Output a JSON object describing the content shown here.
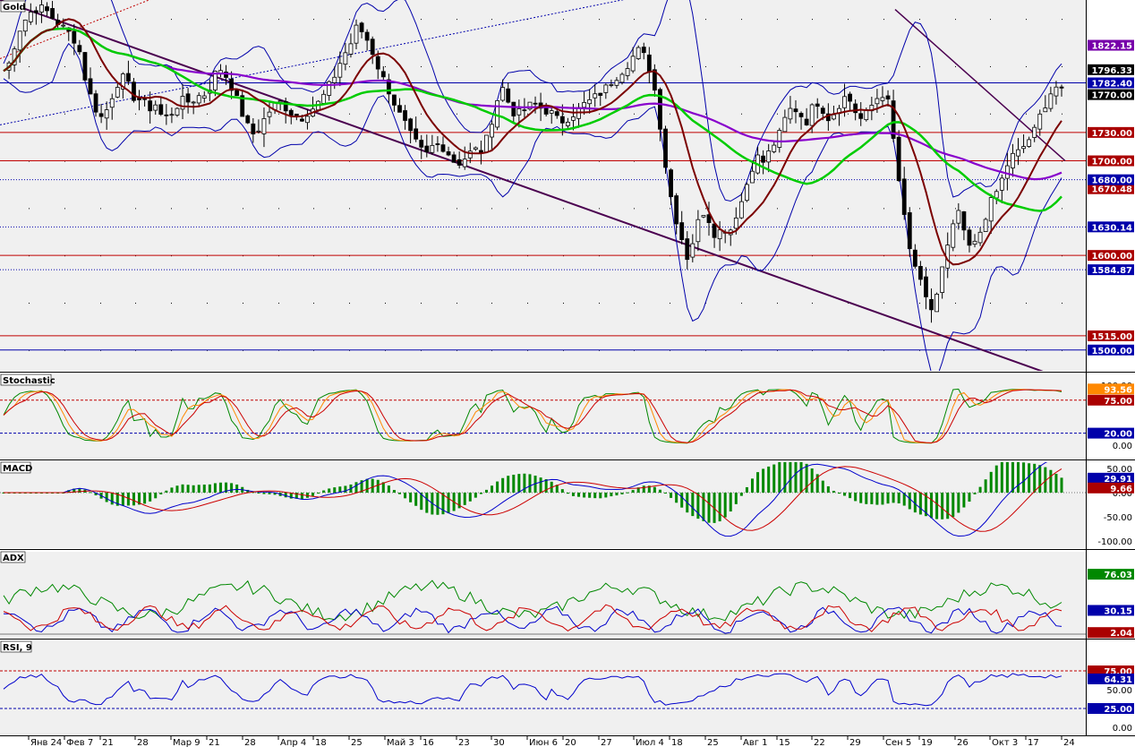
{
  "chart_data": {
    "type": "candlestick",
    "title": "Gold",
    "x_labels": [
      "Янв 24",
      "Фев 7",
      "21",
      "28",
      "Мар 9",
      "21",
      "28",
      "Апр 4",
      "18",
      "25",
      "Май 3",
      "16",
      "23",
      "30",
      "Июн 6",
      "20",
      "27",
      "Июл 4",
      "18",
      "25",
      "Авг 1",
      "15",
      "22",
      "29",
      "Сен 5",
      "19",
      "26",
      "Окт 3",
      "17",
      "24"
    ],
    "price_axis": {
      "range": [
        1478,
        1870
      ],
      "ticks": [
        1500,
        1515,
        1584.87,
        1600,
        1630.14,
        1670.48,
        1680,
        1700,
        1730,
        1770,
        1782.4,
        1796.33,
        1822.15
      ],
      "tick_labels": [
        "1500.00",
        "1515.00",
        "1584.87",
        "1600.00",
        "1630.14",
        "1670.48",
        "1680.00",
        "1700.00",
        "1730.00",
        "1770.00",
        "1782.40",
        "1796.33",
        "1822.15"
      ]
    },
    "levels_red": [
      1515,
      1600,
      1700,
      1730
    ],
    "levels_blue": [
      1500,
      1584.87,
      1630.14,
      1680,
      1782.4
    ],
    "close_series": [
      1795,
      1805,
      1835,
      1848,
      1858,
      1862,
      1860,
      1852,
      1845,
      1838,
      1832,
      1815,
      1780,
      1760,
      1745,
      1755,
      1775,
      1790,
      1780,
      1765,
      1765,
      1755,
      1760,
      1745,
      1748,
      1758,
      1764,
      1762,
      1768,
      1770,
      1780,
      1800,
      1792,
      1778,
      1760,
      1740,
      1728,
      1735,
      1748,
      1758,
      1762,
      1755,
      1748,
      1745,
      1752,
      1757,
      1765,
      1778,
      1792,
      1810,
      1820,
      1840,
      1836,
      1822,
      1802,
      1785,
      1770,
      1752,
      1740,
      1725,
      1715,
      1705,
      1715,
      1718,
      1712,
      1700,
      1698,
      1705,
      1712,
      1710,
      1725,
      1755,
      1780,
      1762,
      1748,
      1752,
      1758,
      1760,
      1754,
      1752,
      1744,
      1742,
      1748,
      1753,
      1760,
      1764,
      1770,
      1776,
      1785,
      1792,
      1800,
      1810,
      1818,
      1806,
      1782,
      1735,
      1680,
      1645,
      1620,
      1595,
      1625,
      1648,
      1638,
      1620,
      1630,
      1625,
      1645,
      1662,
      1690,
      1704,
      1698,
      1714,
      1724,
      1744,
      1757,
      1752,
      1740,
      1757,
      1764,
      1744,
      1750,
      1762,
      1770,
      1754,
      1744,
      1752,
      1764,
      1772,
      1760,
      1704,
      1650,
      1606,
      1585,
      1560,
      1540,
      1560,
      1595,
      1620,
      1650,
      1618,
      1605,
      1620,
      1642,
      1660,
      1672,
      1694,
      1706,
      1710,
      1720,
      1730,
      1750,
      1766,
      1780,
      1772
    ],
    "moving_averages": [
      {
        "color": "#7b0000",
        "period": 20
      },
      {
        "color": "#00cc00",
        "period": 50
      },
      {
        "color": "#8800cc",
        "period": 120
      }
    ],
    "trendlines": [
      {
        "color": "#4b0050",
        "style": "solid"
      },
      {
        "color": "#0000aa",
        "style": "dotted"
      },
      {
        "color": "#cc0000",
        "style": "dotted"
      }
    ],
    "indicators": [
      {
        "name": "Stochastic",
        "ticks": [
          "100.00",
          "75.00",
          "20.00",
          "0.00"
        ],
        "tags": [
          "93.56",
          "75.00",
          "20.00"
        ]
      },
      {
        "name": "MACD",
        "ticks": [
          "50.00",
          "0.00",
          "-50.00",
          "-100.00"
        ],
        "tags": [
          "29.91",
          "9.66"
        ]
      },
      {
        "name": "ADX",
        "tags": [
          "76.03",
          "30.15",
          "2.04"
        ]
      },
      {
        "name": "RSI, 9",
        "ticks": [
          "75.00",
          "50.00",
          "25.00",
          "0.00"
        ],
        "tags": [
          "75.00",
          "64.31",
          "25.00"
        ]
      }
    ],
    "colors": {
      "bg": "#f0f0f0",
      "price_tag_blue": "#0000aa",
      "price_tag_red": "#aa0000",
      "last_price_tag": "#000000",
      "ma120_tag": "#7700aa"
    }
  }
}
